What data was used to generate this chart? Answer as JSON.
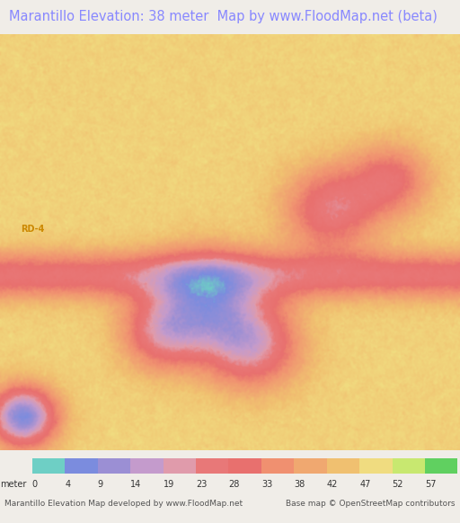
{
  "title": "Marantillo Elevation: 38 meter  Map by www.FloodMap.net (beta)",
  "title_color": "#8888ff",
  "title_fontsize": 10.5,
  "bg_color": "#f0ede8",
  "map_bg": "#f0ede8",
  "colorbar_labels": [
    0,
    4,
    9,
    14,
    19,
    23,
    28,
    33,
    38,
    42,
    47,
    52,
    57
  ],
  "colorbar_colors": [
    "#6ecfc5",
    "#7b8cde",
    "#9b8fd4",
    "#c49bcc",
    "#e09bab",
    "#e87878",
    "#e8706e",
    "#f09070",
    "#f0a870",
    "#f0c070",
    "#f0dc80",
    "#c8e870",
    "#60d060"
  ],
  "bottom_left_text": "Marantillo Elevation Map developed by www.FloodMap.net",
  "bottom_right_text": "Base map © OpenStreetMap contributors",
  "meter_label": "meter",
  "road_label": "RD-4",
  "fig_width": 5.12,
  "fig_height": 5.82,
  "dpi": 100
}
